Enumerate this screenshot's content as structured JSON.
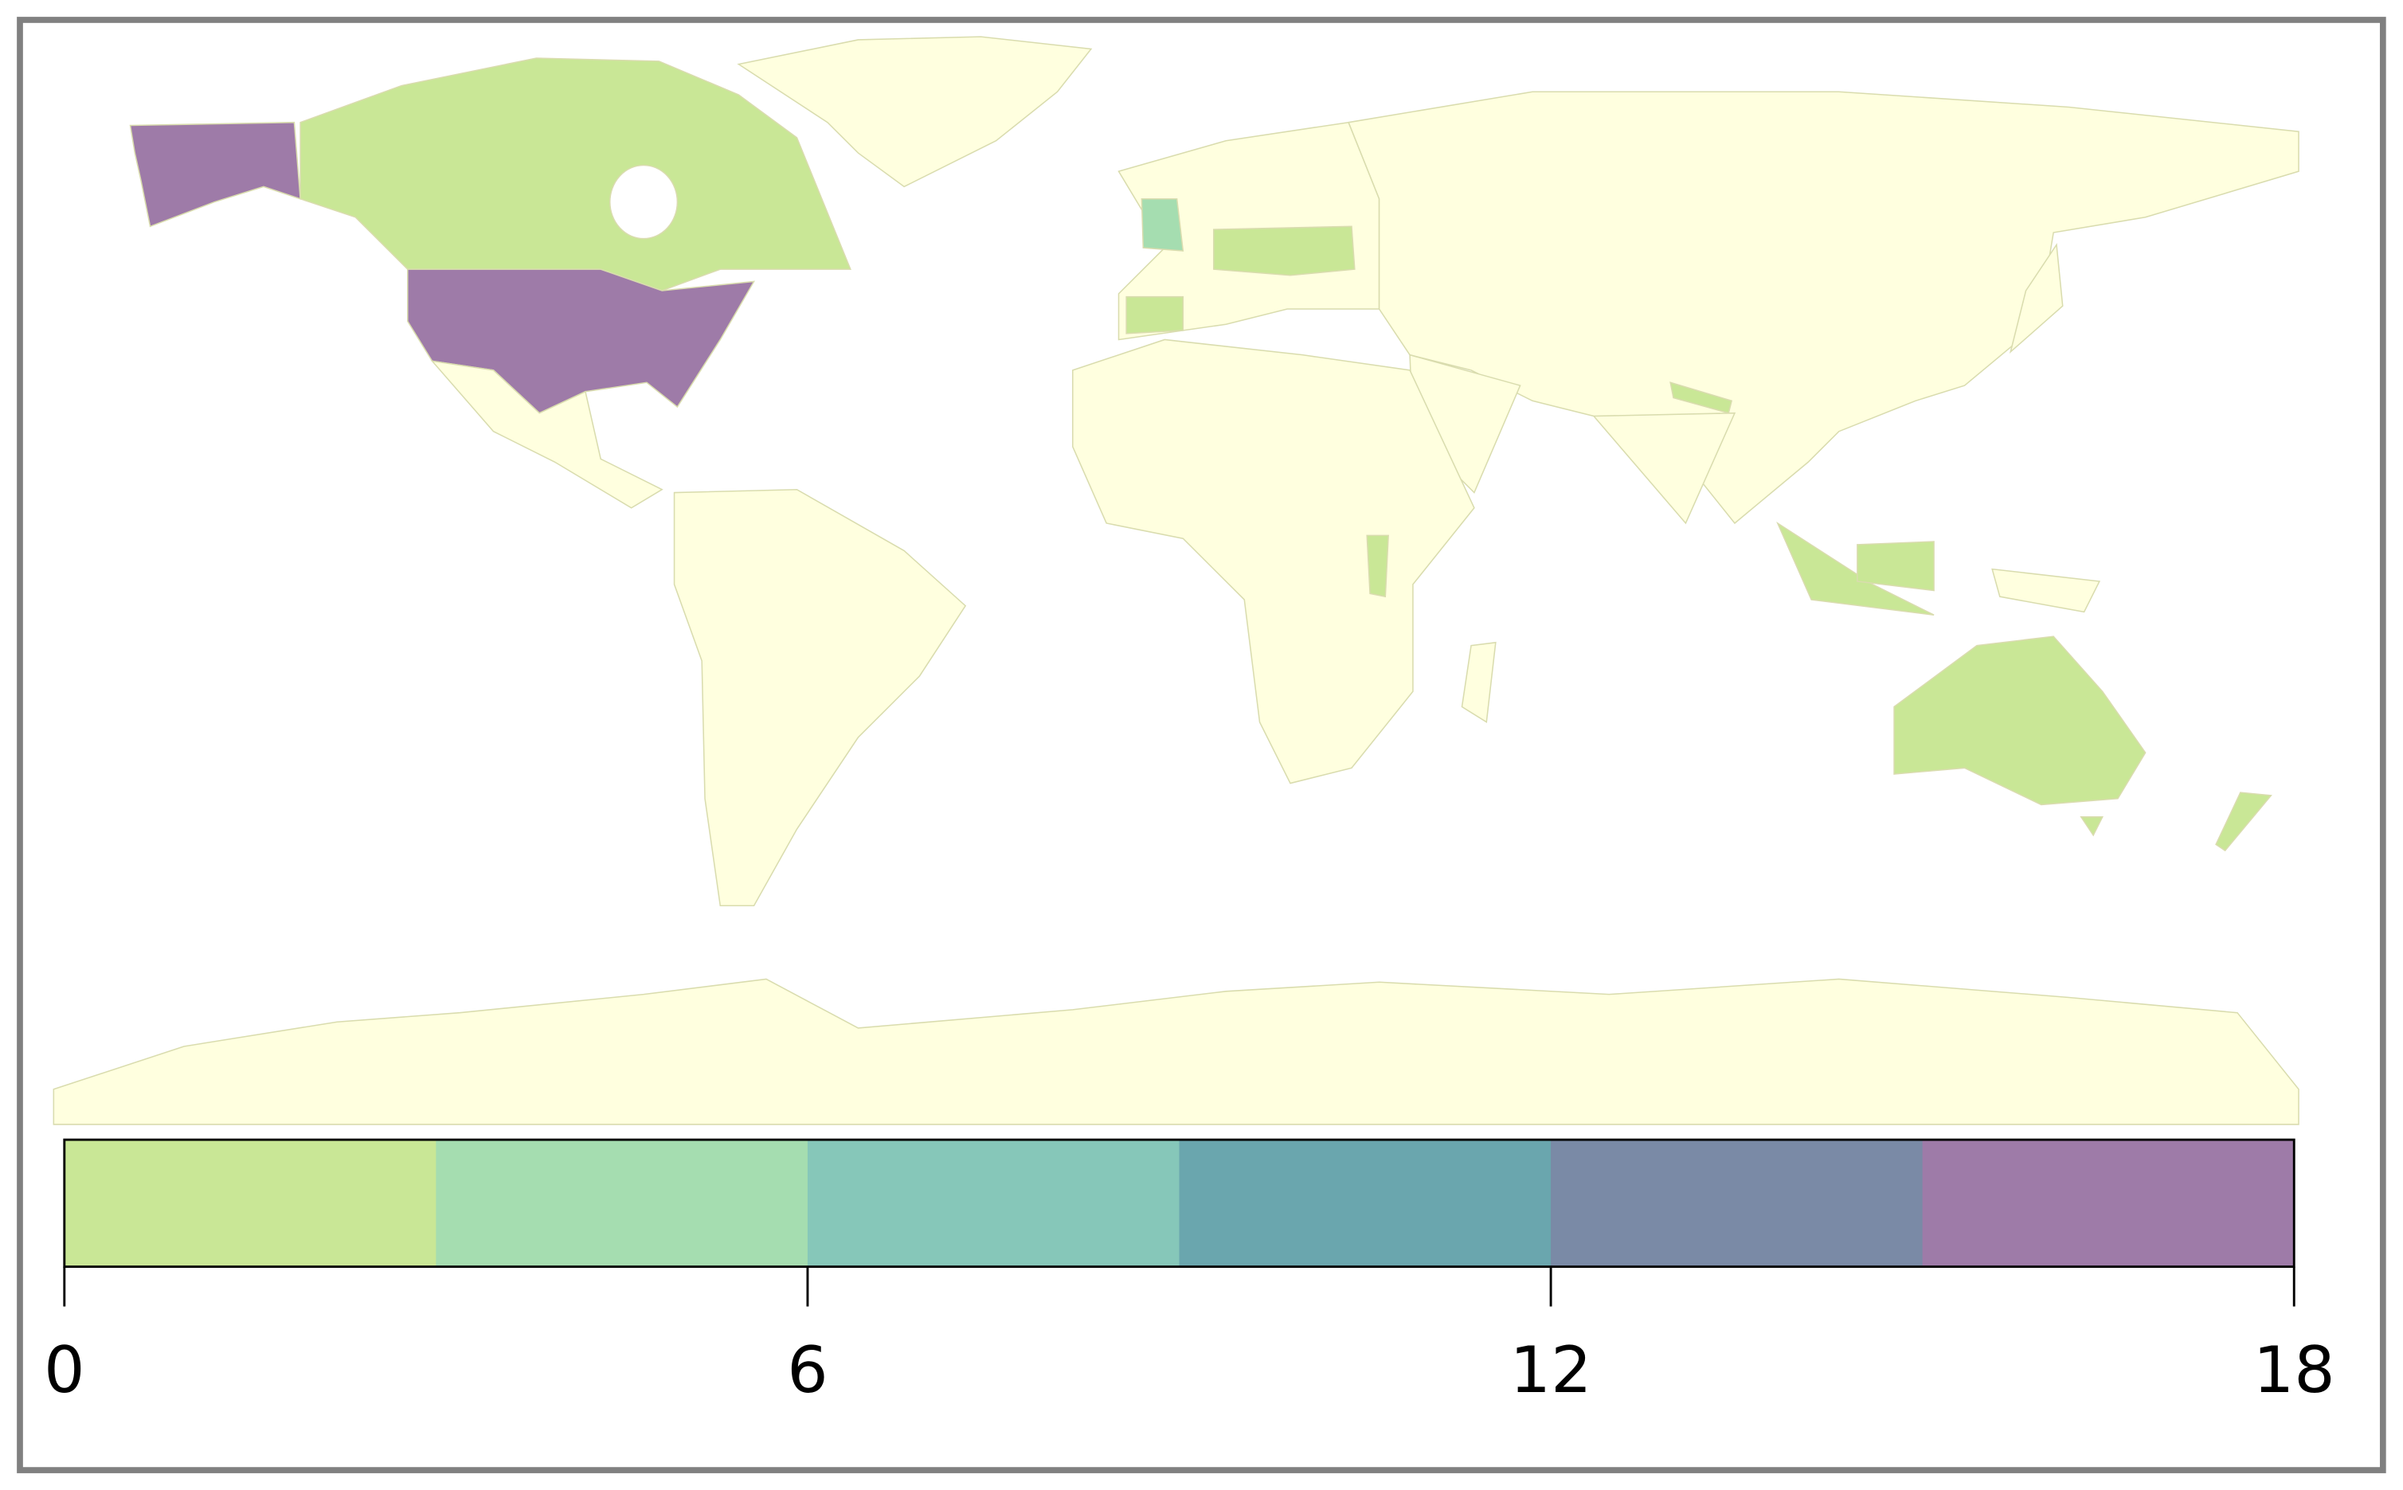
{
  "map": {
    "legend": {
      "lim": [
        0,
        18
      ],
      "ticks": [
        0,
        6,
        12,
        18
      ],
      "colors": [
        "#c9e796",
        "#a5ddb0",
        "#86c7b9",
        "#6aa6ae",
        "#7a8aa6",
        "#9e7ba8"
      ]
    }
  }
}
